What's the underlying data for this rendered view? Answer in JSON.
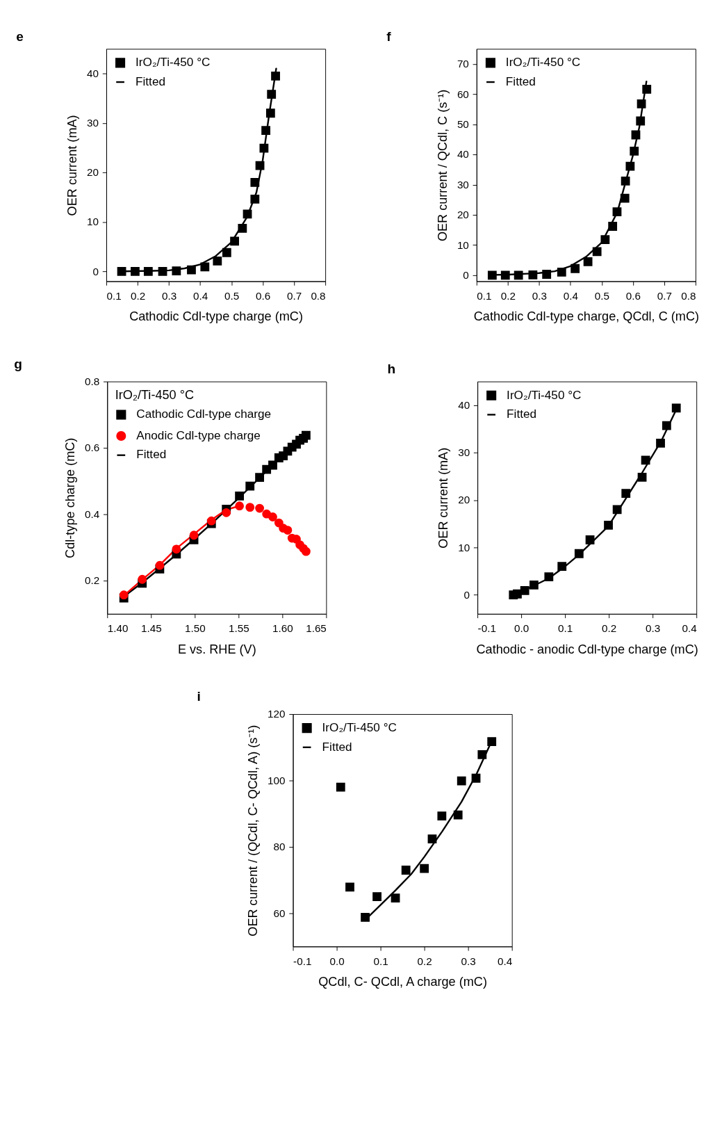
{
  "chart_data": [
    {
      "type": "scatter",
      "title": "e",
      "xlabel": "Cathodic Cdl-type charge (mC)",
      "ylabel": "OER current (mA)",
      "xlim": [
        0.1,
        0.8
      ],
      "xticks": [
        0.1,
        0.2,
        0.3,
        0.4,
        0.5,
        0.6,
        0.7,
        0.8
      ],
      "ylim": [
        -2,
        45
      ],
      "yticks": [
        0,
        10,
        20,
        30,
        40
      ],
      "grid": false,
      "legend": "top left",
      "series": [
        {
          "name": "IrO₂/Ti-450 °C",
          "marker": "square",
          "color": "#000000",
          "x": [
            0.149,
            0.192,
            0.234,
            0.28,
            0.324,
            0.372,
            0.415,
            0.455,
            0.485,
            0.51,
            0.535,
            0.551,
            0.575,
            0.575,
            0.591,
            0.604,
            0.61,
            0.625,
            0.628,
            0.641
          ],
          "values": [
            0,
            0,
            0,
            0,
            0.1,
            0.3,
            0.9,
            2.1,
            3.8,
            6.1,
            8.7,
            11.6,
            14.6,
            18.0,
            21.4,
            24.9,
            28.5,
            32.0,
            35.8,
            39.5
          ]
        },
        {
          "name": "Fitted",
          "type": "line",
          "color": "#000000",
          "x": [
            0.15,
            0.25,
            0.3,
            0.35,
            0.4,
            0.45,
            0.5,
            0.55,
            0.58,
            0.6,
            0.62,
            0.643
          ],
          "values": [
            0,
            0.1,
            0.2,
            0.6,
            1.4,
            3.1,
            5.9,
            11.0,
            16.0,
            22.5,
            31.5,
            41.0
          ]
        }
      ]
    },
    {
      "type": "scatter",
      "title": "f",
      "xlabel": "Cathodic Cdl-type charge, QCdl, C (mC)",
      "ylabel": "OER current / QCdl, C (s⁻¹)",
      "xlim": [
        0.1,
        0.8
      ],
      "xticks": [
        0.1,
        0.2,
        0.3,
        0.4,
        0.5,
        0.6,
        0.7,
        0.8
      ],
      "ylim": [
        -2,
        75
      ],
      "yticks": [
        0,
        10,
        20,
        30,
        40,
        50,
        60,
        70
      ],
      "grid": false,
      "legend": "top left",
      "series": [
        {
          "name": "IrO₂/Ti-450 °C",
          "marker": "square",
          "color": "#000000",
          "x": [
            0.15,
            0.192,
            0.234,
            0.28,
            0.324,
            0.372,
            0.415,
            0.456,
            0.485,
            0.511,
            0.535,
            0.549,
            0.574,
            0.576,
            0.591,
            0.604,
            0.609,
            0.624,
            0.627,
            0.644
          ],
          "values": [
            0,
            0,
            0,
            0.1,
            0.3,
            1.0,
            2.2,
            4.5,
            7.8,
            11.8,
            16.2,
            21.0,
            25.5,
            31.2,
            36.1,
            41.1,
            46.5,
            51.1,
            56.8,
            61.6
          ]
        },
        {
          "name": "Fitted",
          "type": "line",
          "color": "#000000",
          "x": [
            0.15,
            0.2,
            0.3,
            0.35,
            0.4,
            0.45,
            0.5,
            0.55,
            0.6,
            0.62,
            0.643
          ],
          "values": [
            0.1,
            0.2,
            0.7,
            1.3,
            3.0,
            6.1,
            10.8,
            20.9,
            39.8,
            48.9,
            64.2
          ]
        }
      ]
    },
    {
      "type": "scatter",
      "title": "g",
      "xlabel": "E vs. RHE (V)",
      "ylabel": "Cdl-type charge (mC)",
      "legend_title": "IrO₂/Ti-450 °C",
      "xlim": [
        1.4,
        1.65
      ],
      "xticks": [
        {
          "value": 1.4,
          "label": "1.40"
        },
        1.45,
        {
          "value": 1.5,
          "label": "1.50"
        },
        1.55,
        {
          "value": 1.6,
          "label": "1.60"
        },
        1.65
      ],
      "ylim": [
        0.1,
        0.8
      ],
      "yticks": [
        0.2,
        0.4,
        0.6,
        0.8
      ],
      "grid": false,
      "legend": "top left",
      "series": [
        {
          "name": "Cathodic Cdl-type charge",
          "marker": "square",
          "color": "#000000",
          "x": [
            1.419,
            1.44,
            1.46,
            1.479,
            1.499,
            1.519,
            1.536,
            1.551,
            1.563,
            1.574,
            1.582,
            1.589,
            1.596,
            1.601,
            1.606,
            1.611,
            1.616,
            1.62,
            1.624,
            1.627
          ],
          "values": [
            0.148,
            0.192,
            0.235,
            0.28,
            0.323,
            0.372,
            0.415,
            0.455,
            0.485,
            0.511,
            0.535,
            0.548,
            0.57,
            0.576,
            0.59,
            0.602,
            0.611,
            0.623,
            0.629,
            0.638
          ]
        },
        {
          "name": "Anodic Cdl-type charge",
          "marker": "circle",
          "color": "#ff0000",
          "x": [
            1.419,
            1.44,
            1.46,
            1.479,
            1.499,
            1.519,
            1.536,
            1.551,
            1.563,
            1.574,
            1.582,
            1.589,
            1.596,
            1.601,
            1.606,
            1.611,
            1.616,
            1.62,
            1.624,
            1.627
          ],
          "values": [
            0.157,
            0.204,
            0.246,
            0.295,
            0.337,
            0.38,
            0.405,
            0.425,
            0.421,
            0.418,
            0.401,
            0.392,
            0.374,
            0.358,
            0.352,
            0.328,
            0.325,
            0.308,
            0.297,
            0.288
          ]
        },
        {
          "name": "Fitted",
          "type": "line",
          "color": "#000000",
          "x": [
            1.419,
            1.44,
            1.46,
            1.48,
            1.5,
            1.52,
            1.55,
            1.58,
            1.6,
            1.627
          ],
          "values": [
            0.152,
            0.194,
            0.237,
            0.281,
            0.327,
            0.374,
            0.448,
            0.525,
            0.575,
            0.64
          ]
        },
        {
          "type": "line",
          "color": "#ff0000",
          "x": [
            1.419,
            1.44,
            1.46,
            1.479,
            1.499,
            1.519,
            1.536,
            1.551
          ],
          "values": [
            0.155,
            0.203,
            0.247,
            0.297,
            0.34,
            0.383,
            0.414,
            0.425
          ]
        }
      ]
    },
    {
      "type": "scatter",
      "title": "h",
      "xlabel": "Cathodic - anodic Cdl-type charge (mC)",
      "ylabel": "OER current (mA)",
      "xlim": [
        -0.1,
        0.4
      ],
      "xticks": [
        -0.1,
        {
          "value": 0,
          "label": "0.0"
        },
        0.1,
        0.2,
        0.3,
        0.4
      ],
      "ylim": [
        -4,
        45
      ],
      "yticks": [
        0,
        10,
        20,
        30,
        40
      ],
      "grid": false,
      "legend": "top left",
      "series": [
        {
          "name": "IrO₂/Ti-450 °C",
          "marker": "square",
          "color": "#000000",
          "x": [
            -0.018,
            -0.009,
            0.008,
            0.029,
            0.063,
            0.093,
            0.132,
            0.157,
            0.199,
            0.219,
            0.239,
            0.276,
            0.284,
            0.318,
            0.332,
            0.354
          ],
          "values": [
            0,
            0.2,
            0.9,
            2.1,
            3.8,
            6.0,
            8.7,
            11.6,
            14.7,
            18.0,
            21.4,
            24.8,
            28.4,
            32.0,
            35.7,
            39.4
          ]
        },
        {
          "name": "Fitted",
          "type": "line",
          "color": "#000000",
          "x": [
            -0.011,
            0.03,
            0.063,
            0.1,
            0.132,
            0.16,
            0.199,
            0.24,
            0.275,
            0.32,
            0.354
          ],
          "values": [
            0.3,
            2.0,
            3.5,
            6.0,
            8.5,
            11.0,
            14.5,
            20.5,
            25.6,
            32.5,
            39.1
          ]
        }
      ]
    },
    {
      "type": "scatter",
      "title": "i",
      "xlabel": "QCdl, C- QCdl, A charge (mC)",
      "ylabel": "OER current / (QCdl, C- QCdl, A) (s⁻¹)",
      "xlim": [
        -0.1,
        0.4
      ],
      "xticks": [
        -0.1,
        {
          "value": 0,
          "label": "0.0"
        },
        0.1,
        0.2,
        0.3,
        0.4
      ],
      "ylim": [
        50,
        120
      ],
      "yticks": [
        60,
        80,
        100,
        120
      ],
      "grid": false,
      "legend": "top left",
      "series": [
        {
          "name": "IrO₂/Ti-450 °C",
          "marker": "square",
          "color": "#000000",
          "x": [
            0.009,
            0.03,
            0.065,
            0.092,
            0.134,
            0.158,
            0.2,
            0.218,
            0.24,
            0.277,
            0.285,
            0.318,
            0.332,
            0.354
          ],
          "values": [
            98.0,
            67.9,
            58.8,
            65.0,
            64.6,
            73.0,
            73.5,
            82.4,
            89.3,
            89.6,
            99.9,
            100.7,
            107.8,
            111.7
          ]
        },
        {
          "name": "Fitted",
          "type": "line",
          "color": "#000000",
          "x": [
            0.071,
            0.1,
            0.134,
            0.17,
            0.2,
            0.241,
            0.285,
            0.319,
            0.349
          ],
          "values": [
            58.8,
            62.5,
            66.9,
            71.8,
            77.0,
            84.7,
            93.6,
            101.9,
            110.5
          ]
        }
      ]
    }
  ]
}
